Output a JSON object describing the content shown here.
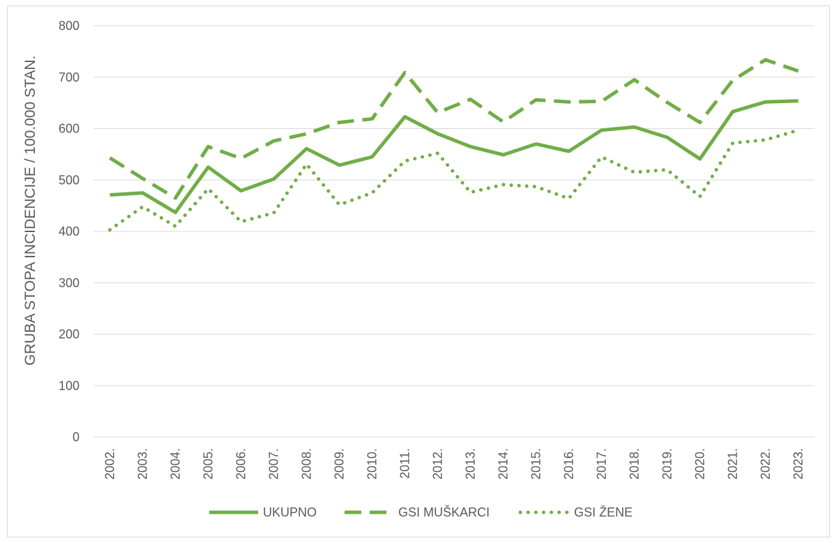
{
  "chart_data": {
    "type": "line",
    "title": "",
    "xlabel": "",
    "ylabel": "GRUBA STOPA INCIDENCIJE / 100.000 STAN.",
    "ylim": [
      0,
      800
    ],
    "yticks": [
      0,
      100,
      200,
      300,
      400,
      500,
      600,
      700,
      800
    ],
    "grid": true,
    "legend_position": "bottom",
    "categories": [
      "2002.",
      "2003.",
      "2004.",
      "2005.",
      "2006.",
      "2007.",
      "2008.",
      "2009.",
      "2010.",
      "2011.",
      "2012.",
      "2013.",
      "2014.",
      "2015.",
      "2016.",
      "2017.",
      "2018.",
      "2019.",
      "2020.",
      "2021.",
      "2022.",
      "2023."
    ],
    "series": [
      {
        "name": "UKUPNO",
        "style": "solid",
        "color": "#70ad47",
        "values": [
          471,
          475,
          437,
          525,
          479,
          502,
          561,
          529,
          545,
          623,
          590,
          565,
          549,
          570,
          556,
          597,
          603,
          583,
          541,
          633,
          652,
          654
        ]
      },
      {
        "name": "GSI MUŠKARCI",
        "style": "dashed",
        "color": "#70ad47",
        "values": [
          543,
          503,
          465,
          565,
          542,
          576,
          590,
          612,
          619,
          709,
          631,
          657,
          613,
          656,
          652,
          653,
          695,
          651,
          612,
          694,
          734,
          712
        ]
      },
      {
        "name": "GSI ŽENE",
        "style": "dotted",
        "color": "#70ad47",
        "values": [
          403,
          448,
          410,
          483,
          419,
          436,
          531,
          452,
          475,
          537,
          552,
          476,
          491,
          487,
          464,
          545,
          515,
          520,
          468,
          572,
          578,
          597
        ]
      }
    ]
  }
}
